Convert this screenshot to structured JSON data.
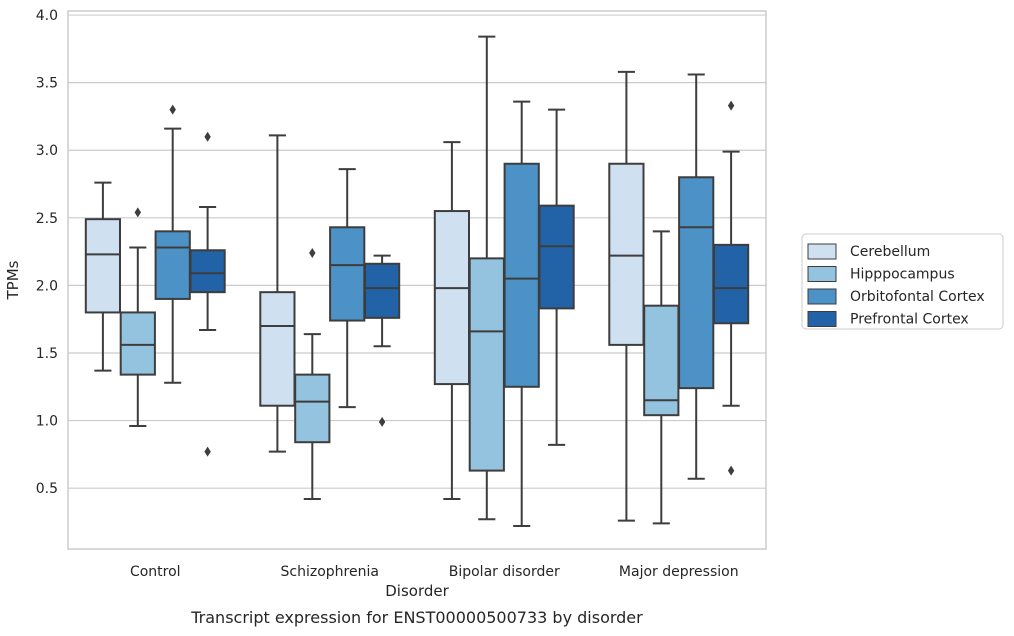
{
  "caption": "Transcript expression for ENST00000500733 by disorder",
  "chart_data": {
    "type": "box",
    "title": "",
    "xlabel": "Disorder",
    "ylabel": "TPMs",
    "ylim": [
      0.05,
      4.03
    ],
    "yticks": [
      "0.5",
      "1.0",
      "1.5",
      "2.0",
      "2.5",
      "3.0",
      "3.5",
      "4.0"
    ],
    "grid": "horizontal",
    "legend_position": "right",
    "categories": [
      "Control",
      "Schizophrenia",
      "Bipolar disorder",
      "Major depression"
    ],
    "series": [
      {
        "name": "Cerebellum",
        "color": "#cfe0f1",
        "boxes": [
          {
            "whislo": 1.37,
            "q1": 1.8,
            "med": 2.23,
            "q3": 2.49,
            "whishi": 2.76,
            "fliers": []
          },
          {
            "whislo": 0.77,
            "q1": 1.11,
            "med": 1.7,
            "q3": 1.95,
            "whishi": 3.11,
            "fliers": []
          },
          {
            "whislo": 0.42,
            "q1": 1.27,
            "med": 1.98,
            "q3": 2.55,
            "whishi": 3.06,
            "fliers": []
          },
          {
            "whislo": 0.26,
            "q1": 1.56,
            "med": 2.22,
            "q3": 2.9,
            "whishi": 3.58,
            "fliers": []
          }
        ]
      },
      {
        "name": "Hipppocampus",
        "color": "#93c3df",
        "boxes": [
          {
            "whislo": 0.96,
            "q1": 1.34,
            "med": 1.56,
            "q3": 1.8,
            "whishi": 2.28,
            "fliers": [
              2.54
            ]
          },
          {
            "whislo": 0.42,
            "q1": 0.84,
            "med": 1.14,
            "q3": 1.34,
            "whishi": 1.64,
            "fliers": [
              2.24
            ]
          },
          {
            "whislo": 0.27,
            "q1": 0.63,
            "med": 1.66,
            "q3": 2.2,
            "whishi": 3.84,
            "fliers": []
          },
          {
            "whislo": 0.24,
            "q1": 1.04,
            "med": 1.15,
            "q3": 1.85,
            "whishi": 2.4,
            "fliers": []
          }
        ]
      },
      {
        "name": "Orbitofontal Cortex",
        "color": "#4d92c6",
        "boxes": [
          {
            "whislo": 1.28,
            "q1": 1.9,
            "med": 2.28,
            "q3": 2.4,
            "whishi": 3.16,
            "fliers": [
              3.3
            ]
          },
          {
            "whislo": 1.1,
            "q1": 1.74,
            "med": 2.15,
            "q3": 2.43,
            "whishi": 2.86,
            "fliers": []
          },
          {
            "whislo": 0.22,
            "q1": 1.25,
            "med": 2.05,
            "q3": 2.9,
            "whishi": 3.36,
            "fliers": []
          },
          {
            "whislo": 0.57,
            "q1": 1.24,
            "med": 2.43,
            "q3": 2.8,
            "whishi": 3.56,
            "fliers": []
          }
        ]
      },
      {
        "name": "Prefrontal Cortex",
        "color": "#2163a6",
        "boxes": [
          {
            "whislo": 1.67,
            "q1": 1.95,
            "med": 2.09,
            "q3": 2.26,
            "whishi": 2.58,
            "fliers": [
              3.1,
              0.77
            ]
          },
          {
            "whislo": 1.55,
            "q1": 1.76,
            "med": 1.98,
            "q3": 2.16,
            "whishi": 2.22,
            "fliers": [
              0.99
            ]
          },
          {
            "whislo": 0.82,
            "q1": 1.83,
            "med": 2.29,
            "q3": 2.59,
            "whishi": 3.3,
            "fliers": []
          },
          {
            "whislo": 1.11,
            "q1": 1.72,
            "med": 1.98,
            "q3": 2.3,
            "whishi": 2.99,
            "fliers": [
              3.33,
              0.63
            ]
          }
        ]
      }
    ]
  }
}
